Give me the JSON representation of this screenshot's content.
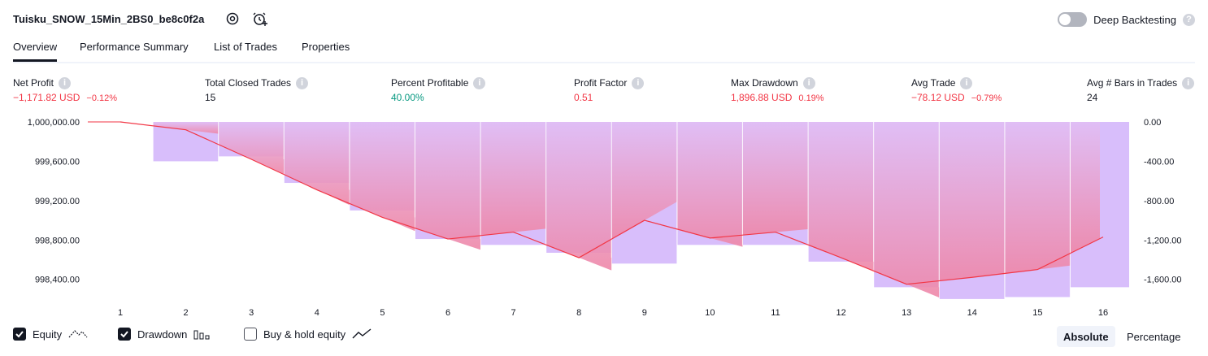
{
  "header": {
    "title": "Tuisku_SNOW_15Min_2BS0_be8c0f2a",
    "deep_backtesting_label": "Deep Backtesting",
    "deep_backtesting_enabled": false
  },
  "tabs": [
    {
      "label": "Overview",
      "active": true
    },
    {
      "label": "Performance Summary",
      "active": false
    },
    {
      "label": "List of Trades",
      "active": false
    },
    {
      "label": "Properties",
      "active": false
    }
  ],
  "metrics": {
    "net_profit": {
      "label": "Net Profit",
      "value": "−1,171.82 USD",
      "percent": "−0.12%"
    },
    "total_closed_trades": {
      "label": "Total Closed Trades",
      "value": "15"
    },
    "percent_profitable": {
      "label": "Percent Profitable",
      "value": "40.00%"
    },
    "profit_factor": {
      "label": "Profit Factor",
      "value": "0.51"
    },
    "max_drawdown": {
      "label": "Max Drawdown",
      "value": "1,896.88 USD",
      "percent": "0.19%"
    },
    "avg_trade": {
      "label": "Avg Trade",
      "value": "−78.12 USD",
      "percent": "−0.79%"
    },
    "avg_bars": {
      "label": "Avg # Bars in Trades",
      "value": "24"
    }
  },
  "chart_data": {
    "type": "line",
    "x": [
      1,
      2,
      3,
      4,
      5,
      6,
      7,
      8,
      9,
      10,
      11,
      12,
      13,
      14,
      15,
      16
    ],
    "left_axis_ticks": [
      "1,000,000.00",
      "999,600.00",
      "999,200.00",
      "998,800.00",
      "998,400.00"
    ],
    "left_axis_values": [
      1000000,
      999600,
      999200,
      998800,
      998400
    ],
    "right_axis_ticks": [
      "0.00",
      "-400.00",
      "-800.00",
      "-1,200.00",
      "-1,600.00"
    ],
    "right_axis_values": [
      0,
      -400,
      -800,
      -1200,
      -1600
    ],
    "equity_ylim": [
      1000000,
      998100
    ],
    "drawdown_ylim": [
      0,
      -1900
    ],
    "series": [
      {
        "name": "Equity",
        "values": [
          1000000,
          999920,
          999620,
          999310,
          999030,
          998810,
          998880,
          998620,
          999000,
          998820,
          998880,
          998620,
          998350,
          998420,
          998500,
          998830
        ],
        "color": "#f23645"
      },
      {
        "name": "Drawdown",
        "values": [
          0,
          -400,
          -350,
          -620,
          -900,
          -1190,
          -1250,
          -1330,
          -1440,
          -1250,
          -1250,
          -1420,
          -1680,
          -1800,
          -1780,
          -1680
        ],
        "color": "#d1b3fa"
      }
    ],
    "equity_area": {
      "top_color": "#e1bef5",
      "bottom_color": "#ee87a8"
    }
  },
  "legend": {
    "equity": {
      "label": "Equity",
      "checked": true
    },
    "drawdown": {
      "label": "Drawdown",
      "checked": true
    },
    "buy_hold": {
      "label": "Buy & hold equity",
      "checked": false
    }
  },
  "modes": {
    "absolute": "Absolute",
    "percentage": "Percentage",
    "active": "absolute"
  },
  "colors": {
    "negative": "#f23645",
    "positive": "#089981",
    "text": "#131722"
  }
}
